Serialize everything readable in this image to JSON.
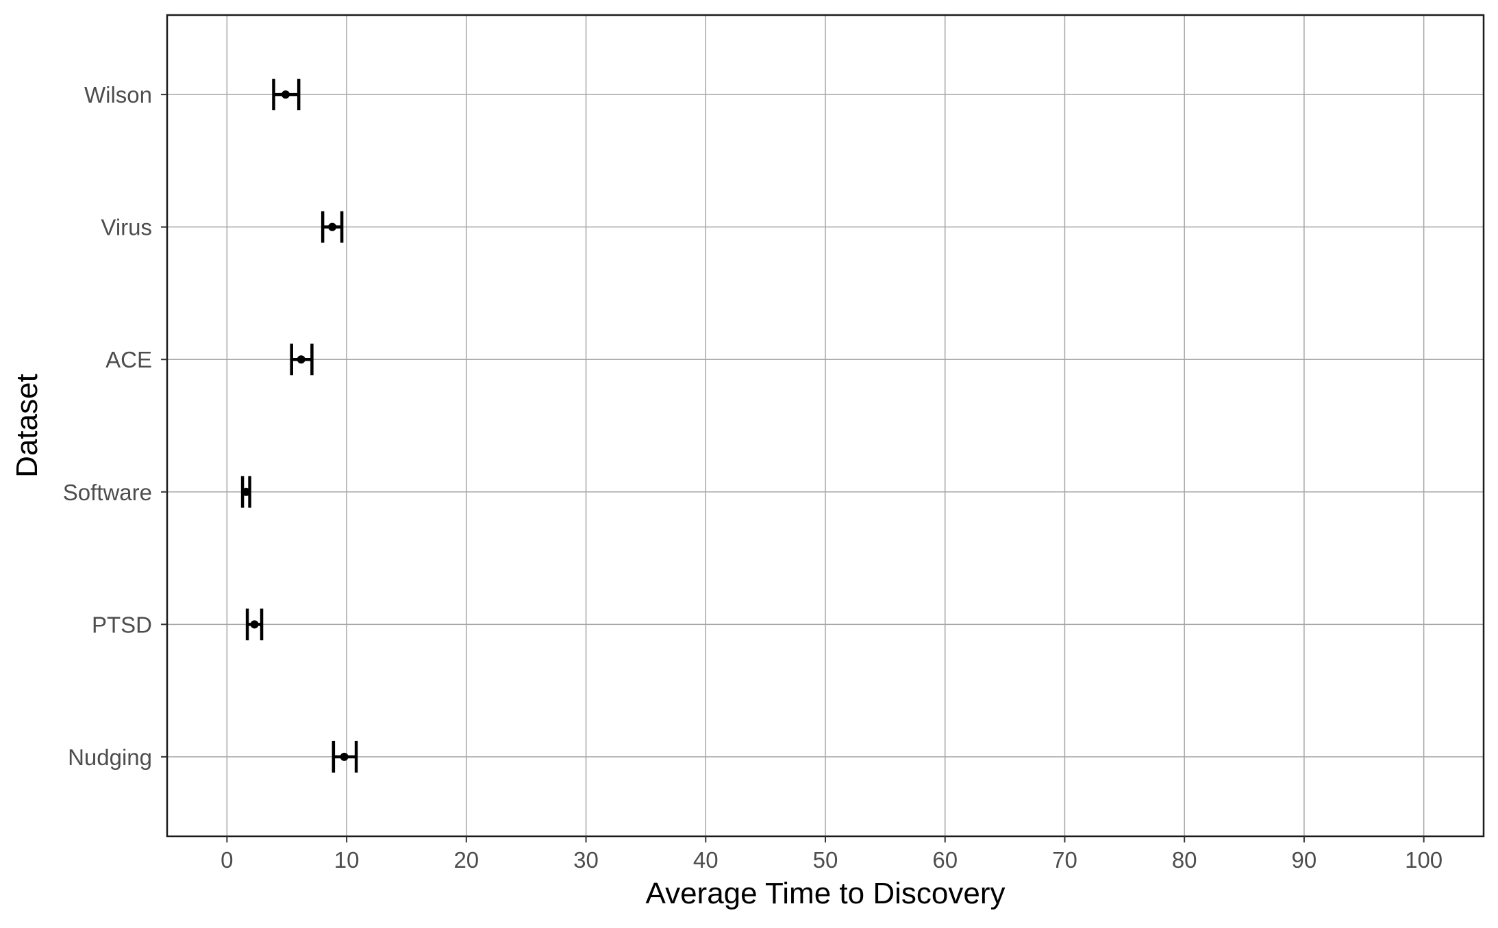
{
  "chart_data": {
    "type": "errorbar",
    "xlabel": "Average Time to Discovery",
    "ylabel": "Dataset",
    "xlim": [
      -5,
      105
    ],
    "x_ticks": [
      0,
      10,
      20,
      30,
      40,
      50,
      60,
      70,
      80,
      90,
      100
    ],
    "x_tick_labels": [
      "0",
      "10",
      "20",
      "30",
      "40",
      "50",
      "60",
      "70",
      "80",
      "90",
      "100"
    ],
    "categories": [
      "Nudging",
      "PTSD",
      "Software",
      "ACE",
      "Virus",
      "Wilson"
    ],
    "series": [
      {
        "points": [
          {
            "label": "Nudging",
            "value": 9.8,
            "lower": 8.9,
            "upper": 10.8
          },
          {
            "label": "PTSD",
            "value": 2.3,
            "lower": 1.7,
            "upper": 2.9
          },
          {
            "label": "Software",
            "value": 1.6,
            "lower": 1.3,
            "upper": 1.9
          },
          {
            "label": "ACE",
            "value": 6.2,
            "lower": 5.4,
            "upper": 7.1
          },
          {
            "label": "Virus",
            "value": 8.8,
            "lower": 8.0,
            "upper": 9.6
          },
          {
            "label": "Wilson",
            "value": 4.9,
            "lower": 3.9,
            "upper": 6.0
          }
        ]
      }
    ],
    "grid": true,
    "legend": "none",
    "colors": {
      "marks": "#000000",
      "grid": "#a6a6a6",
      "ticks": "#4d4d4d"
    }
  }
}
